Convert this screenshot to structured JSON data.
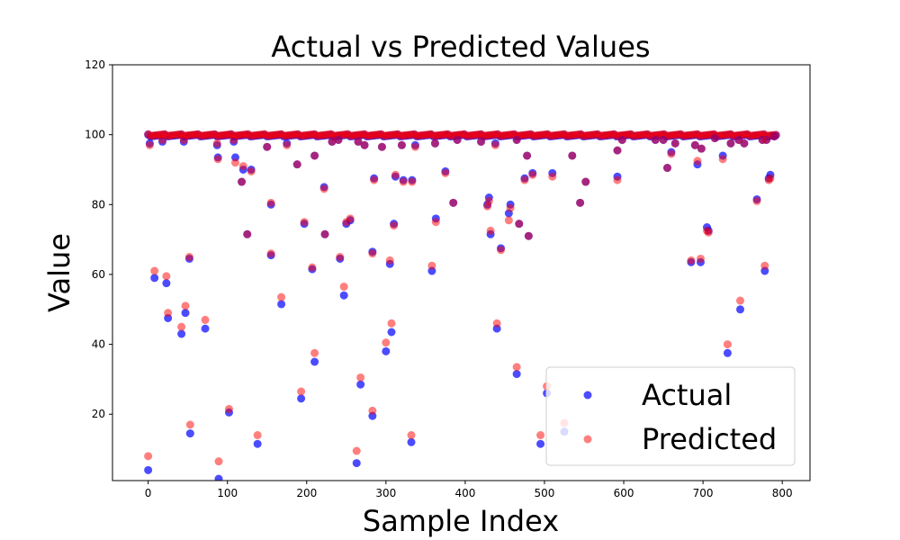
{
  "chart_data": {
    "type": "scatter",
    "title": "Actual vs Predicted Values",
    "xlabel": "Sample Index",
    "ylabel": "Value",
    "xlim": [
      -45,
      835
    ],
    "ylim": [
      1,
      120
    ],
    "xticks": [
      0,
      100,
      200,
      300,
      400,
      500,
      600,
      700,
      800
    ],
    "yticks": [
      20,
      40,
      60,
      80,
      100,
      120
    ],
    "legend_position": "lower-right",
    "grid": false,
    "series": [
      {
        "name": "Actual",
        "color": "#0000ff",
        "alpha": 0.7,
        "points": [
          [
            0,
            4
          ],
          [
            2,
            97.5
          ],
          [
            8,
            59
          ],
          [
            18,
            98
          ],
          [
            23,
            57.5
          ],
          [
            25,
            47.5
          ],
          [
            42,
            43
          ],
          [
            45,
            98
          ],
          [
            47,
            49
          ],
          [
            52,
            64.5
          ],
          [
            53,
            14.5
          ],
          [
            72,
            44.5
          ],
          [
            87,
            97
          ],
          [
            88,
            93.5
          ],
          [
            89,
            1.5
          ],
          [
            102,
            20.5
          ],
          [
            108,
            98
          ],
          [
            110,
            93.5
          ],
          [
            118,
            86.5
          ],
          [
            120,
            90
          ],
          [
            125,
            71.5
          ],
          [
            130,
            90
          ],
          [
            138,
            11.5
          ],
          [
            150,
            96.5
          ],
          [
            155,
            65.5
          ],
          [
            155,
            80
          ],
          [
            168,
            51.5
          ],
          [
            175,
            97.5
          ],
          [
            188,
            91.5
          ],
          [
            193,
            24.5
          ],
          [
            197,
            74.5
          ],
          [
            207,
            61.5
          ],
          [
            210,
            35
          ],
          [
            210,
            94
          ],
          [
            222,
            85
          ],
          [
            223,
            71.5
          ],
          [
            232,
            98
          ],
          [
            240,
            98.5
          ],
          [
            242,
            64.5
          ],
          [
            247,
            54
          ],
          [
            250,
            74.5
          ],
          [
            255,
            75.5
          ],
          [
            263,
            6
          ],
          [
            265,
            98
          ],
          [
            268,
            28.5
          ],
          [
            273,
            97
          ],
          [
            283,
            19.5
          ],
          [
            283,
            66.5
          ],
          [
            285,
            87.5
          ],
          [
            295,
            96.5
          ],
          [
            300,
            38
          ],
          [
            305,
            63
          ],
          [
            307,
            43.5
          ],
          [
            310,
            74.5
          ],
          [
            312,
            88
          ],
          [
            320,
            97
          ],
          [
            322,
            87
          ],
          [
            332,
            12
          ],
          [
            333,
            87
          ],
          [
            337,
            97
          ],
          [
            358,
            61
          ],
          [
            362,
            97.5
          ],
          [
            363,
            76
          ],
          [
            375,
            89.5
          ],
          [
            385,
            80.5
          ],
          [
            390,
            98.5
          ],
          [
            420,
            98
          ],
          [
            428,
            80
          ],
          [
            430,
            82
          ],
          [
            432,
            71.5
          ],
          [
            438,
            97.5
          ],
          [
            440,
            44.5
          ],
          [
            445,
            67.5
          ],
          [
            455,
            77.5
          ],
          [
            457,
            80
          ],
          [
            465,
            31.5
          ],
          [
            465,
            98.5
          ],
          [
            468,
            74.5
          ],
          [
            475,
            87.5
          ],
          [
            478,
            94
          ],
          [
            480,
            71
          ],
          [
            485,
            89
          ],
          [
            495,
            11.5
          ],
          [
            503,
            26
          ],
          [
            510,
            89
          ],
          [
            525,
            15
          ],
          [
            535,
            94
          ],
          [
            545,
            80.5
          ],
          [
            552,
            86.5
          ],
          [
            592,
            88
          ],
          [
            592,
            95.5
          ],
          [
            598,
            98.5
          ],
          [
            640,
            98.5
          ],
          [
            650,
            98.5
          ],
          [
            655,
            90.5
          ],
          [
            660,
            95
          ],
          [
            665,
            97.5
          ],
          [
            685,
            63.5
          ],
          [
            690,
            97
          ],
          [
            693,
            91.5
          ],
          [
            697,
            63.5
          ],
          [
            698,
            96
          ],
          [
            705,
            73.5
          ],
          [
            707,
            72.5
          ],
          [
            715,
            99
          ],
          [
            725,
            94
          ],
          [
            731,
            37.5
          ],
          [
            735,
            97.5
          ],
          [
            745,
            98.5
          ],
          [
            747,
            50
          ],
          [
            752,
            97.5
          ],
          [
            768,
            81.5
          ],
          [
            775,
            98.5
          ],
          [
            778,
            61
          ],
          [
            780,
            98.5
          ],
          [
            783,
            87.5
          ],
          [
            785,
            88.5
          ],
          [
            790,
            99.5
          ]
        ]
      },
      {
        "name": "Predicted",
        "color": "#ff0000",
        "alpha": 0.5,
        "points": [
          [
            0,
            8
          ],
          [
            2,
            97
          ],
          [
            8,
            61
          ],
          [
            18,
            98.5
          ],
          [
            23,
            59.5
          ],
          [
            25,
            49
          ],
          [
            42,
            45
          ],
          [
            45,
            98.5
          ],
          [
            47,
            51
          ],
          [
            52,
            65
          ],
          [
            53,
            17
          ],
          [
            72,
            47
          ],
          [
            87,
            97.5
          ],
          [
            88,
            93
          ],
          [
            89,
            6.5
          ],
          [
            102,
            21.5
          ],
          [
            108,
            98.5
          ],
          [
            110,
            92
          ],
          [
            118,
            86.5
          ],
          [
            120,
            91
          ],
          [
            125,
            71.5
          ],
          [
            130,
            89.5
          ],
          [
            138,
            14
          ],
          [
            150,
            96.5
          ],
          [
            155,
            66
          ],
          [
            155,
            80.5
          ],
          [
            168,
            53.5
          ],
          [
            175,
            97
          ],
          [
            188,
            91.5
          ],
          [
            193,
            26.5
          ],
          [
            197,
            75
          ],
          [
            207,
            62
          ],
          [
            210,
            37.5
          ],
          [
            210,
            94
          ],
          [
            222,
            84.5
          ],
          [
            223,
            71.5
          ],
          [
            232,
            98
          ],
          [
            240,
            98.5
          ],
          [
            242,
            65
          ],
          [
            247,
            56.5
          ],
          [
            250,
            75
          ],
          [
            255,
            76
          ],
          [
            263,
            9.5
          ],
          [
            265,
            98
          ],
          [
            268,
            30.5
          ],
          [
            273,
            97
          ],
          [
            283,
            21
          ],
          [
            283,
            66
          ],
          [
            285,
            87
          ],
          [
            295,
            96.5
          ],
          [
            300,
            40.5
          ],
          [
            305,
            64
          ],
          [
            307,
            46
          ],
          [
            310,
            74
          ],
          [
            312,
            88.5
          ],
          [
            320,
            97
          ],
          [
            322,
            86.5
          ],
          [
            332,
            14
          ],
          [
            333,
            86.5
          ],
          [
            337,
            96.5
          ],
          [
            358,
            62.5
          ],
          [
            362,
            97.5
          ],
          [
            363,
            75
          ],
          [
            375,
            89
          ],
          [
            385,
            80.5
          ],
          [
            390,
            98.5
          ],
          [
            420,
            98
          ],
          [
            428,
            79.5
          ],
          [
            430,
            81
          ],
          [
            432,
            72.5
          ],
          [
            438,
            97
          ],
          [
            440,
            46
          ],
          [
            445,
            67
          ],
          [
            455,
            75.5
          ],
          [
            457,
            79
          ],
          [
            465,
            33.5
          ],
          [
            465,
            98.5
          ],
          [
            468,
            74.5
          ],
          [
            475,
            87
          ],
          [
            478,
            94
          ],
          [
            480,
            71
          ],
          [
            485,
            88.5
          ],
          [
            495,
            14
          ],
          [
            503,
            28
          ],
          [
            510,
            88
          ],
          [
            525,
            17.5
          ],
          [
            535,
            94
          ],
          [
            545,
            80.5
          ],
          [
            552,
            86.5
          ],
          [
            592,
            87
          ],
          [
            592,
            95.5
          ],
          [
            598,
            98.5
          ],
          [
            640,
            98.5
          ],
          [
            650,
            98.5
          ],
          [
            655,
            90.5
          ],
          [
            660,
            94.5
          ],
          [
            665,
            97.5
          ],
          [
            685,
            64
          ],
          [
            690,
            97
          ],
          [
            693,
            92.5
          ],
          [
            697,
            64.5
          ],
          [
            698,
            96
          ],
          [
            705,
            72.5
          ],
          [
            707,
            72
          ],
          [
            715,
            99
          ],
          [
            725,
            93
          ],
          [
            731,
            40
          ],
          [
            735,
            97.5
          ],
          [
            745,
            98.5
          ],
          [
            747,
            52.5
          ],
          [
            752,
            97.5
          ],
          [
            768,
            81
          ],
          [
            775,
            98.5
          ],
          [
            778,
            62.5
          ],
          [
            780,
            98.5
          ],
          [
            783,
            87
          ],
          [
            785,
            87.5
          ],
          [
            790,
            99.5
          ]
        ]
      }
    ],
    "dense_band": {
      "value": 100,
      "x_start": 0,
      "x_end": 793,
      "step": 3
    }
  }
}
